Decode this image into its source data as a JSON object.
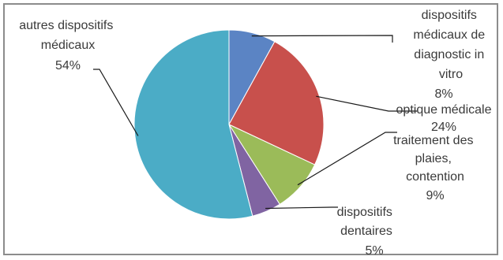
{
  "chart_data": {
    "type": "pie",
    "title": "",
    "start_angle_deg": 90,
    "direction": "clockwise",
    "slices": [
      {
        "name": "dispositifs médicaux de diagnostic in vitro",
        "label_lines": [
          "dispositifs",
          "médicaux de",
          "diagnostic in",
          "vitro"
        ],
        "value": 8,
        "value_label": "8%",
        "color": "#5b84c4"
      },
      {
        "name": "optique médicale",
        "label_lines": [
          "optique médicale"
        ],
        "value": 24,
        "value_label": "24%",
        "color": "#c8504c"
      },
      {
        "name": "traitement des plaies, contention",
        "label_lines": [
          "traitement des",
          "plaies,",
          "contention"
        ],
        "value": 9,
        "value_label": "9%",
        "color": "#9bbb59"
      },
      {
        "name": "dispositifs dentaires",
        "label_lines": [
          "dispositifs",
          "dentaires"
        ],
        "value": 5,
        "value_label": "5%",
        "color": "#8064a2"
      },
      {
        "name": "autres dispositifs médicaux",
        "label_lines": [
          "autres dispositifs",
          "médicaux"
        ],
        "value": 54,
        "value_label": "54%",
        "color": "#4bacc6"
      }
    ],
    "slice_border_color": "#ffffff",
    "leader_color": "#1a1a1a",
    "frame_border_color": "#8c8c8c"
  }
}
